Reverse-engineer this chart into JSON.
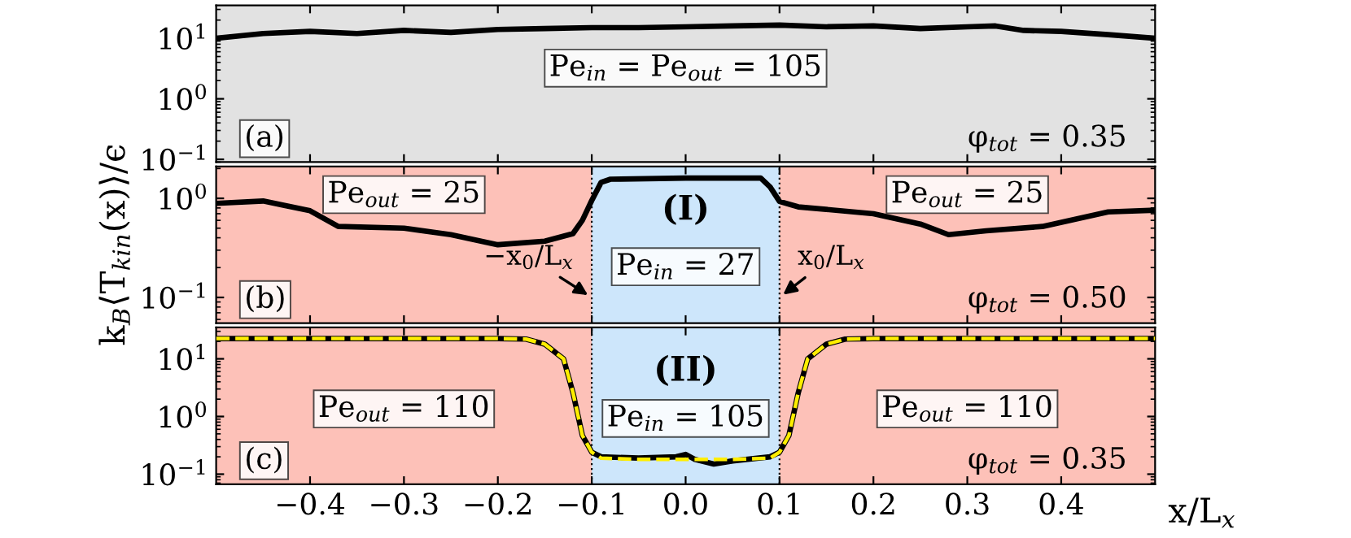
{
  "chart_data": [
    {
      "type": "line",
      "xlim": [
        -0.5,
        0.5
      ],
      "ylim": [
        0.09,
        35
      ],
      "log": true,
      "tick_labels": "y",
      "xticks": [
        -0.4,
        -0.3,
        -0.2,
        -0.1,
        0.0,
        0.1,
        0.2,
        0.3,
        0.4
      ],
      "yticks": [
        {
          "value": 0.1,
          "label": "10$^{−1}$"
        },
        {
          "value": 1,
          "label": "10$^{0}$"
        },
        {
          "value": 10,
          "label": "10$^{1}$"
        }
      ],
      "bands": [
        {
          "axis": "x",
          "from": -0.5,
          "to": 0.5,
          "label": "Pe$_{in}$ = Pe$_{out}$ = 105",
          "color": "#e2e2e2"
        }
      ],
      "annotations": [
        "(a)",
        "φ$_{tot}$ = 0.35"
      ],
      "series": [
        {
          "color": "#000000",
          "line_style": "solid",
          "x": [
            -0.5,
            -0.45,
            -0.4,
            -0.35,
            -0.3,
            -0.25,
            -0.2,
            -0.15,
            -0.1,
            -0.05,
            0.0,
            0.05,
            0.1,
            0.15,
            0.2,
            0.25,
            0.3,
            0.33,
            0.36,
            0.4,
            0.45,
            0.5
          ],
          "values": [
            10,
            12,
            13,
            12,
            13.5,
            12.5,
            14,
            14.5,
            15,
            15,
            15.5,
            16,
            16.5,
            15.5,
            16,
            14.5,
            15.5,
            16,
            13.5,
            13,
            11.5,
            10
          ]
        }
      ]
    },
    {
      "type": "line",
      "xlim": [
        -0.5,
        0.5
      ],
      "ylim": [
        0.055,
        2.1
      ],
      "log": true,
      "tick_labels": "y",
      "xticks": [
        -0.4,
        -0.3,
        -0.2,
        -0.1,
        0.0,
        0.1,
        0.2,
        0.3,
        0.4
      ],
      "yticks": [
        {
          "value": 0.1,
          "label": "10$^{−1}$"
        },
        {
          "value": 1,
          "label": "10$^{0}$"
        }
      ],
      "ylabel": "k$_{B}$⟨T$_{kin}$(x)⟩/ϵ",
      "bands": [
        {
          "axis": "x",
          "from": -0.5,
          "to": -0.1,
          "label": "Pe$_{out}$ = 25",
          "color": "#fdc1b8"
        },
        {
          "axis": "x",
          "from": -0.1,
          "to": 0.1,
          "label": "Pe$_{in}$ = 27",
          "color": "#cde6fb"
        },
        {
          "axis": "x",
          "from": 0.1,
          "to": 0.5,
          "label": "Pe$_{out}$ = 25",
          "color": "#fdc1b8"
        }
      ],
      "ref_lines": [
        {
          "axis": "x",
          "value": -0.1,
          "line_style": "dotted",
          "color": "#000000"
        },
        {
          "axis": "x",
          "value": 0.1,
          "line_style": "dotted",
          "color": "#000000"
        }
      ],
      "annotations": [
        "(b)",
        "φ$_{tot}$ = 0.50",
        "(I)",
        {
          "text": "−x$_{0}$/L$_{x}$",
          "x": -0.1,
          "y": 0.1
        },
        {
          "text": "x$_{0}$/L$_{x}$",
          "x": 0.1,
          "y": 0.1
        }
      ],
      "series": [
        {
          "color": "#000000",
          "line_style": "solid",
          "x": [
            -0.5,
            -0.45,
            -0.4,
            -0.37,
            -0.3,
            -0.25,
            -0.2,
            -0.15,
            -0.12,
            -0.11,
            -0.1,
            -0.09,
            -0.08,
            0.0,
            0.08,
            0.09,
            0.1,
            0.12,
            0.2,
            0.25,
            0.28,
            0.32,
            0.38,
            0.45,
            0.5
          ],
          "values": [
            0.89,
            0.94,
            0.75,
            0.52,
            0.5,
            0.43,
            0.34,
            0.37,
            0.44,
            0.6,
            0.95,
            1.45,
            1.56,
            1.6,
            1.6,
            1.3,
            0.93,
            0.82,
            0.7,
            0.55,
            0.43,
            0.47,
            0.52,
            0.73,
            0.76
          ]
        }
      ]
    },
    {
      "type": "line",
      "xlim": [
        -0.5,
        0.5
      ],
      "ylim": [
        0.067,
        35
      ],
      "log": true,
      "xticks": [
        {
          "value": -0.4,
          "label": "−0.4"
        },
        {
          "value": -0.3,
          "label": "−0.3"
        },
        {
          "value": -0.2,
          "label": "−0.2"
        },
        {
          "value": -0.1,
          "label": "−0.1"
        },
        {
          "value": 0.0,
          "label": "0.0"
        },
        0.1,
        0.2,
        0.3,
        0.4
      ],
      "yticks": [
        {
          "value": 0.1,
          "label": "10$^{−1}$"
        },
        {
          "value": 1,
          "label": "10$^{0}$"
        },
        {
          "value": 10,
          "label": "10$^{1}$"
        }
      ],
      "xlabel": "x/L$_{x}$",
      "bands": [
        {
          "axis": "x",
          "from": -0.5,
          "to": -0.1,
          "label": "Pe$_{out}$ = 110",
          "color": "#fdc1b8"
        },
        {
          "axis": "x",
          "from": -0.1,
          "to": 0.1,
          "label": "Pe$_{in}$ = 105",
          "color": "#cde6fb"
        },
        {
          "axis": "x",
          "from": 0.1,
          "to": 0.5,
          "label": "Pe$_{out}$ = 110",
          "color": "#fdc1b8"
        }
      ],
      "ref_lines": [
        {
          "axis": "x",
          "value": -0.1,
          "line_style": "dotted",
          "color": "#000000"
        },
        {
          "axis": "x",
          "value": 0.1,
          "line_style": "dotted",
          "color": "#000000"
        }
      ],
      "annotations": [
        "(c)",
        "φ$_{tot}$ = 0.35",
        "(II)"
      ],
      "series": [
        {
          "color": "#000000",
          "line_style": "solid",
          "x": [
            -0.5,
            -0.2,
            -0.17,
            -0.15,
            -0.13,
            -0.12,
            -0.11,
            -0.1,
            -0.09,
            -0.05,
            -0.01,
            0.0,
            0.01,
            0.03,
            0.05,
            0.09,
            0.1,
            0.11,
            0.12,
            0.13,
            0.15,
            0.17,
            0.2,
            0.5
          ],
          "values": [
            22.5,
            22.5,
            22,
            18,
            10,
            2.6,
            0.47,
            0.24,
            0.2,
            0.19,
            0.2,
            0.22,
            0.18,
            0.15,
            0.17,
            0.2,
            0.24,
            0.47,
            2.6,
            10,
            18,
            22,
            22.5,
            22.5
          ]
        },
        {
          "color": "#ffee00",
          "line_style": "dashed",
          "x": [
            -0.5,
            -0.2,
            -0.17,
            -0.15,
            -0.13,
            -0.12,
            -0.11,
            -0.1,
            -0.09,
            -0.05,
            0.0,
            0.05,
            0.09,
            0.1,
            0.11,
            0.12,
            0.13,
            0.15,
            0.17,
            0.2,
            0.5
          ],
          "values": [
            22.5,
            22.5,
            22,
            18,
            10,
            2.6,
            0.47,
            0.24,
            0.19,
            0.18,
            0.18,
            0.18,
            0.19,
            0.24,
            0.47,
            2.6,
            10,
            18,
            22,
            22.5,
            22.5
          ]
        }
      ]
    }
  ]
}
